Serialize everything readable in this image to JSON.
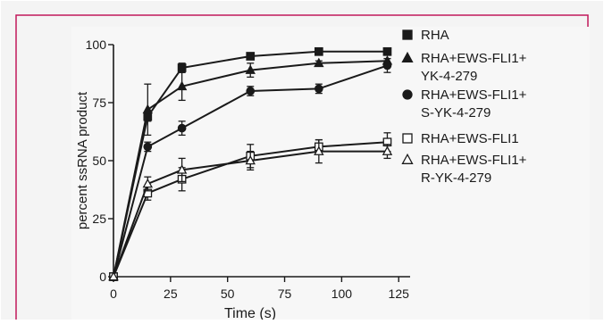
{
  "frame": {
    "border_color": "#c2185b",
    "background": "#f4f4f4",
    "ink": "#1a1a1a"
  },
  "chart_data": {
    "type": "line",
    "title": "",
    "xlabel": "Time (s)",
    "ylabel": "percent ssRNA product",
    "xlim": [
      0,
      130
    ],
    "ylim": [
      0,
      100
    ],
    "xticks": [
      0,
      25,
      50,
      75,
      100,
      125
    ],
    "yticks": [
      0,
      25,
      50,
      75,
      100
    ],
    "grid": false,
    "legend_position": "right",
    "series": [
      {
        "name": "RHA",
        "legend_lines": [
          "RHA"
        ],
        "marker": "square-filled",
        "x": [
          0,
          15,
          30,
          60,
          90,
          120
        ],
        "y": [
          0,
          69,
          90,
          95,
          97,
          97
        ],
        "err": [
          0,
          2,
          2,
          1,
          1,
          1
        ]
      },
      {
        "name": "RHA+EWS-FLI1+ YK-4-279",
        "legend_lines": [
          "RHA+EWS-FLI1+",
          "YK-4-279"
        ],
        "marker": "triangle-filled",
        "x": [
          0,
          15,
          30,
          60,
          90,
          120
        ],
        "y": [
          0,
          72,
          82,
          89,
          92,
          93
        ],
        "err": [
          0,
          11,
          6,
          3,
          1,
          1
        ]
      },
      {
        "name": "RHA+EWS-FLI1+ S-YK-4-279",
        "legend_lines": [
          "RHA+EWS-FLI1+",
          "S-YK-4-279"
        ],
        "marker": "circle-filled",
        "x": [
          0,
          15,
          30,
          60,
          90,
          120
        ],
        "y": [
          0,
          56,
          64,
          80,
          81,
          91
        ],
        "err": [
          0,
          2,
          3,
          2,
          2,
          3
        ]
      },
      {
        "name": "RHA+EWS-FLI1",
        "legend_lines": [
          "RHA+EWS-FLI1"
        ],
        "marker": "square-open",
        "x": [
          0,
          15,
          30,
          60,
          90,
          120
        ],
        "y": [
          0,
          36,
          42,
          52,
          56,
          58
        ],
        "err": [
          0,
          3,
          5,
          5,
          3,
          4
        ]
      },
      {
        "name": "RHA+EWS-FLI1+ R-YK-4-279",
        "legend_lines": [
          "RHA+EWS-FLI1+",
          "R-YK-4-279"
        ],
        "marker": "triangle-open",
        "x": [
          0,
          15,
          30,
          60,
          90,
          120
        ],
        "y": [
          0,
          40,
          46,
          50,
          54,
          54
        ],
        "err": [
          0,
          3,
          5,
          4,
          5,
          3
        ]
      }
    ]
  }
}
